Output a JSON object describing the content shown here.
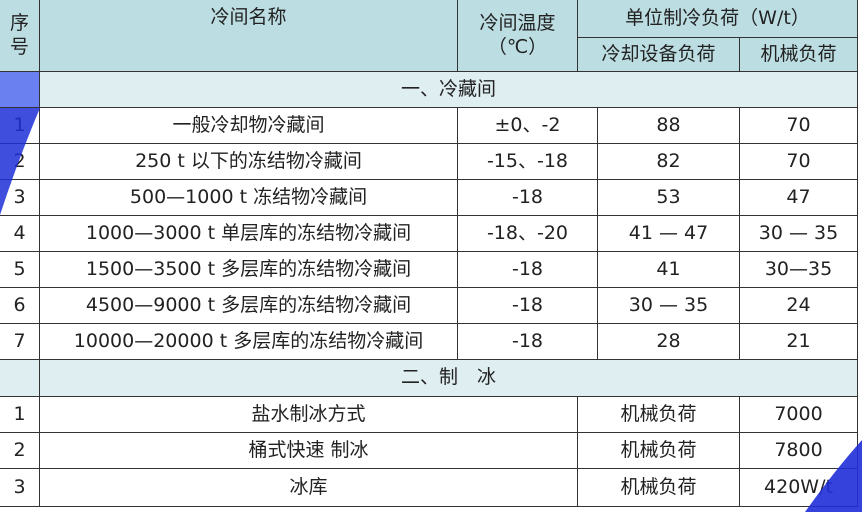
{
  "header": {
    "index": "序号",
    "name": "冷间名称",
    "temperature": "冷间温度（℃）",
    "unit_load": "单位制冷负荷（W/t）",
    "equipment_load": "冷却设备负荷",
    "mechanical_load": "机械负荷"
  },
  "section1": {
    "title": "一、冷藏间",
    "rows": [
      {
        "index": "1",
        "name": "一般冷却物冷藏间",
        "temperature": "±0、-2",
        "equipment": "88",
        "mechanical": "70"
      },
      {
        "index": "2",
        "name": "250 t 以下的冻结物冷藏间",
        "temperature": "-15、-18",
        "equipment": "82",
        "mechanical": "70"
      },
      {
        "index": "3",
        "name": "500—1000 t 冻结物冷藏间",
        "temperature": "-18",
        "equipment": "53",
        "mechanical": "47"
      },
      {
        "index": "4",
        "name": "1000—3000 t 单层库的冻结物冷藏间",
        "temperature": "-18、-20",
        "equipment": "41 — 47",
        "mechanical": "30 — 35"
      },
      {
        "index": "5",
        "name": "1500—3500 t 多层库的冻结物冷藏间",
        "temperature": "-18",
        "equipment": "41",
        "mechanical": "30—35"
      },
      {
        "index": "6",
        "name": "4500—9000 t 多层库的冻结物冷藏间",
        "temperature": "-18",
        "equipment": "30 — 35",
        "mechanical": "24"
      },
      {
        "index": "7",
        "name": "10000—20000 t 多层库的冻结物冷藏间",
        "temperature": "-18",
        "equipment": "28",
        "mechanical": "21"
      }
    ]
  },
  "section2": {
    "title": "二、制　冰",
    "rows": [
      {
        "index": "1",
        "name": "盐水制冰方式",
        "load_type": "机械负荷",
        "value": "7000"
      },
      {
        "index": "2",
        "name": "桶式快速 制冰",
        "load_type": "机械负荷",
        "value": "7800"
      },
      {
        "index": "3",
        "name": "冰库",
        "load_type": "机械负荷",
        "value": "420W/t"
      }
    ]
  },
  "colors": {
    "header_bg": "#bcdde2",
    "section_bg": "#dfeef1",
    "decor_blue": "#1f2fd8"
  }
}
